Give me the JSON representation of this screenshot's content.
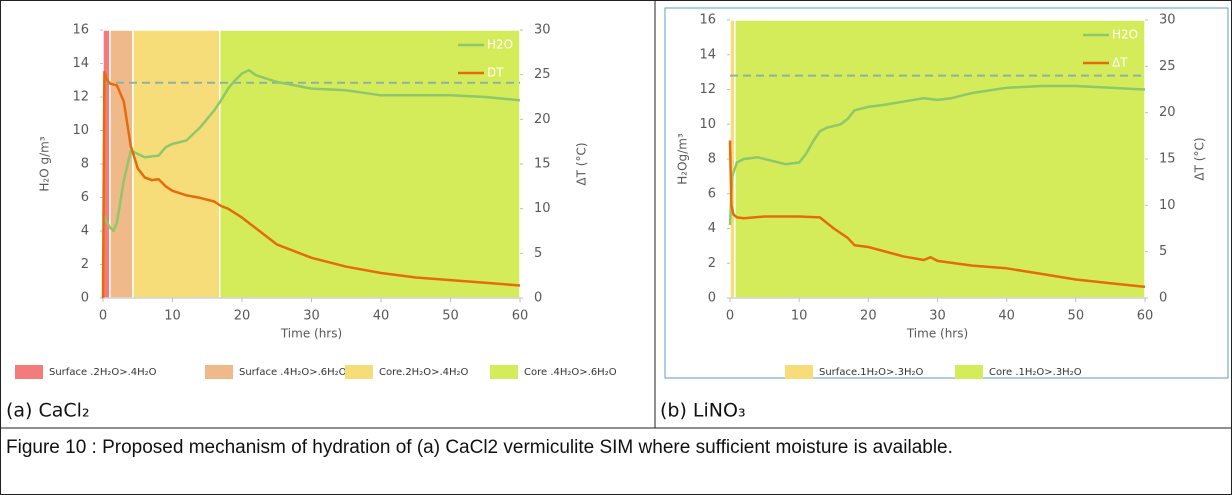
{
  "chart_data": [
    {
      "type": "line",
      "x_label": "Time (hrs)",
      "y_label": "H₂O g/m³",
      "y2_label": "ΔT (°C)",
      "xlim": [
        0,
        60
      ],
      "xticks": [
        0,
        10,
        20,
        30,
        40,
        50,
        60
      ],
      "ylim": [
        0,
        16
      ],
      "yticks": [
        0,
        2,
        4,
        6,
        8,
        10,
        12,
        14,
        16
      ],
      "y2lim": [
        0,
        30
      ],
      "y2ticks": [
        0,
        5,
        10,
        15,
        20,
        25,
        30
      ],
      "hline": 12.85,
      "hline_color": "#8fb1a0",
      "regions": [
        {
          "name": "Surface .2H₂O>.4H₂O",
          "color": "#f47b7b",
          "x": [
            0,
            1
          ]
        },
        {
          "name": "Surface .4H₂O>.6H₂O",
          "color": "#f0b98a",
          "x": [
            1,
            4.3
          ]
        },
        {
          "name": "Core.2H₂O>.4H₂O",
          "color": "#f7dc7a",
          "x": [
            4.3,
            16.8
          ]
        },
        {
          "name": "Core .4H₂O>.6H₂O",
          "color": "#d4ec5a",
          "x": [
            16.8,
            60
          ]
        }
      ],
      "series": [
        {
          "name": "H2O",
          "color": "#8dc86a",
          "x": [
            0,
            0.5,
            1,
            1.5,
            2,
            3,
            4,
            5,
            6,
            8,
            9,
            10,
            12,
            14,
            16,
            17,
            18,
            19,
            20,
            21,
            22,
            25,
            30,
            35,
            40,
            45,
            50,
            55,
            60
          ],
          "values": [
            5,
            4.6,
            4.2,
            4,
            4.5,
            7,
            8.8,
            8.6,
            8.4,
            8.5,
            9,
            9.2,
            9.4,
            10.2,
            11.2,
            11.8,
            12.5,
            13,
            13.4,
            13.6,
            13.3,
            12.9,
            12.5,
            12.4,
            12.1,
            12.1,
            12.1,
            12,
            11.8
          ]
        },
        {
          "name": "DT",
          "color": "#e46c0a",
          "axis": "y2",
          "x": [
            0,
            0.2,
            0.5,
            1,
            2,
            3,
            4,
            5,
            6,
            7,
            8,
            9,
            10,
            12,
            14,
            16,
            17,
            18,
            20,
            25,
            30,
            35,
            40,
            45,
            50,
            55,
            60
          ],
          "values": [
            0,
            25.3,
            24.5,
            24,
            23.8,
            22,
            17,
            14.5,
            13.5,
            13.2,
            13.3,
            12.5,
            12,
            11.5,
            11.2,
            10.8,
            10.3,
            10,
            9,
            6,
            4.5,
            3.5,
            2.8,
            2.3,
            2,
            1.7,
            1.4
          ]
        }
      ]
    },
    {
      "type": "line",
      "x_label": "Time (hrs)",
      "y_label": "H₂Og/m³",
      "y2_label": "ΔT (°C)",
      "xlim": [
        0,
        60
      ],
      "xticks": [
        0,
        10,
        20,
        30,
        40,
        50,
        60
      ],
      "ylim": [
        0,
        16
      ],
      "yticks": [
        0,
        2,
        4,
        6,
        8,
        10,
        12,
        14,
        16
      ],
      "y2lim": [
        0,
        30
      ],
      "y2ticks": [
        0,
        5,
        10,
        15,
        20,
        25,
        30
      ],
      "hline": 12.8,
      "hline_color": "#8fb1a0",
      "regions": [
        {
          "name": "Surface.1H₂O>.3H₂O",
          "color": "#f7dc7a",
          "x": [
            0,
            0.7
          ]
        },
        {
          "name": "Core .1H₂O>.3H₂O",
          "color": "#d4ec5a",
          "x": [
            0.7,
            60
          ]
        }
      ],
      "series": [
        {
          "name": "H2O",
          "color": "#8dc86a",
          "x": [
            0,
            0.3,
            1,
            2,
            4,
            6,
            8,
            10,
            11,
            12,
            13,
            14,
            16,
            17,
            18,
            20,
            22,
            25,
            28,
            30,
            32,
            35,
            40,
            45,
            50,
            55,
            60
          ],
          "values": [
            4.2,
            7,
            7.8,
            8,
            8.1,
            7.9,
            7.7,
            7.8,
            8.3,
            9,
            9.6,
            9.8,
            10,
            10.3,
            10.8,
            11,
            11.1,
            11.3,
            11.5,
            11.4,
            11.5,
            11.8,
            12.1,
            12.2,
            12.2,
            12.1,
            12
          ]
        },
        {
          "name": "ΔT",
          "color": "#e46c0a",
          "axis": "y2",
          "x": [
            0,
            0.2,
            0.5,
            1,
            2,
            5,
            10,
            13,
            15,
            17,
            18,
            20,
            25,
            28,
            29,
            30,
            35,
            40,
            45,
            50,
            55,
            60
          ],
          "values": [
            17,
            10,
            9,
            8.7,
            8.6,
            8.8,
            8.8,
            8.7,
            7.5,
            6.5,
            5.7,
            5.5,
            4.5,
            4.1,
            4.4,
            4,
            3.5,
            3.2,
            2.6,
            2,
            1.6,
            1.2
          ]
        }
      ]
    }
  ],
  "panel_labels": [
    "(a) CaCl₂",
    "(b) LiNO₃"
  ],
  "caption": "Figure 10 : Proposed mechanism of hydration of (a) CaCl2 vermiculite SIM where sufficient moisture is available."
}
